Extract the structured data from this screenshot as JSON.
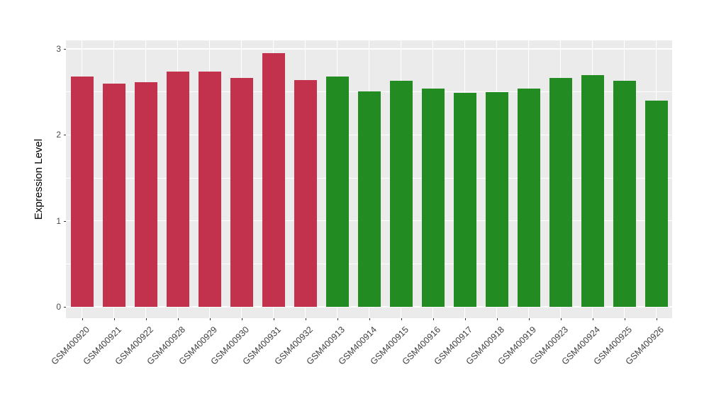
{
  "chart_data": {
    "type": "bar",
    "title": "",
    "xlabel": "",
    "ylabel": "Expression Level",
    "categories": [
      "GSM400920",
      "GSM400921",
      "GSM400922",
      "GSM400928",
      "GSM400929",
      "GSM400930",
      "GSM400931",
      "GSM400932",
      "GSM400913",
      "GSM400914",
      "GSM400915",
      "GSM400916",
      "GSM400917",
      "GSM400918",
      "GSM400919",
      "GSM400923",
      "GSM400924",
      "GSM400925",
      "GSM400926"
    ],
    "values": [
      2.68,
      2.6,
      2.61,
      2.74,
      2.74,
      2.66,
      2.95,
      2.64,
      2.68,
      2.51,
      2.63,
      2.54,
      2.49,
      2.5,
      2.54,
      2.66,
      2.7,
      2.63,
      2.4
    ],
    "groups": [
      "group1",
      "group1",
      "group1",
      "group1",
      "group1",
      "group1",
      "group1",
      "group1",
      "group2",
      "group2",
      "group2",
      "group2",
      "group2",
      "group2",
      "group2",
      "group2",
      "group2",
      "group2",
      "group2"
    ],
    "group_colors": {
      "group1": "#C2324D",
      "group2": "#228B22"
    },
    "y_ticks": [
      "0",
      "1",
      "2",
      "3"
    ],
    "y_tick_values": [
      0,
      1,
      2,
      3
    ],
    "y_minor_tick_values": [
      0.5,
      1.5,
      2.5
    ],
    "ylim": [
      -0.13,
      3.1
    ],
    "grid": "white major and minor horizontal lines, white vertical line at each category center",
    "legend": "none",
    "panel_bg": "#EBEBEB",
    "grid_color": "#FFFFFF"
  }
}
